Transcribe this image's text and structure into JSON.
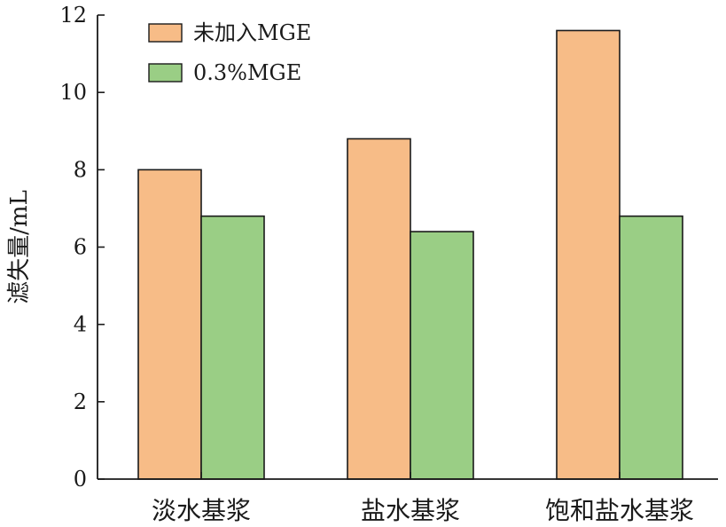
{
  "chart_data": {
    "type": "bar",
    "title": "",
    "xlabel": "",
    "ylabel": "滤失量/mL",
    "categories": [
      "淡水基浆",
      "盐水基浆",
      "饱和盐水基浆"
    ],
    "series": [
      {
        "name": "未加入MGE",
        "values": [
          8.0,
          8.8,
          11.6
        ],
        "color": "#F7BC87"
      },
      {
        "name": "0.3%MGE",
        "values": [
          6.8,
          6.4,
          6.8
        ],
        "color": "#9ACE85"
      }
    ],
    "ylim": [
      0,
      12
    ],
    "yticks": [
      0,
      2,
      4,
      6,
      8,
      10,
      12
    ],
    "grid": false,
    "legend_position": "top-left"
  }
}
